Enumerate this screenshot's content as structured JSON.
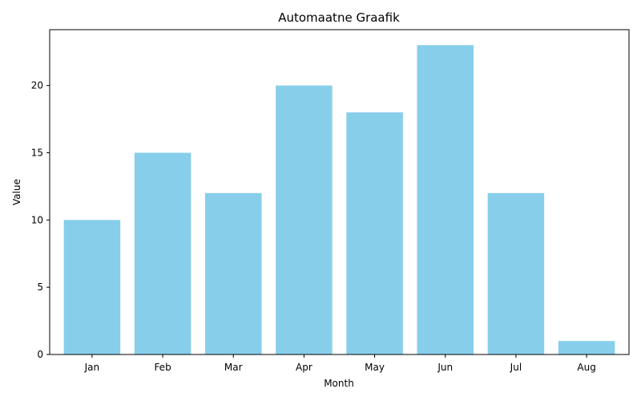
{
  "chart_data": {
    "type": "bar",
    "title": "Automaatne Graafik",
    "xlabel": "Month",
    "ylabel": "Value",
    "categories": [
      "Jan",
      "Feb",
      "Mar",
      "Apr",
      "May",
      "Jun",
      "Jul",
      "Aug"
    ],
    "values": [
      10,
      15,
      12,
      20,
      18,
      23,
      12,
      1
    ],
    "ylim": [
      0,
      24.15
    ],
    "yticks": [
      0,
      5,
      10,
      15,
      20
    ],
    "bar_color": "#87ceeb",
    "grid": false,
    "legend": "none"
  }
}
